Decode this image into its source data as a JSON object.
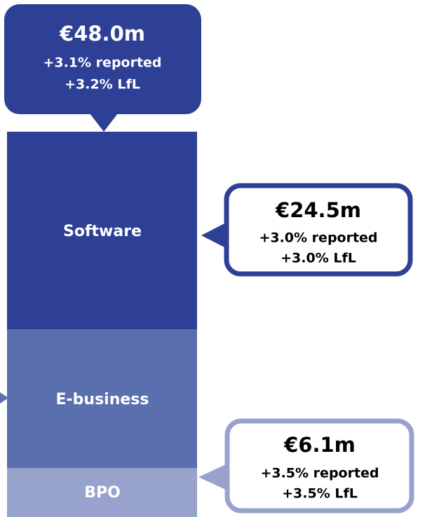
{
  "segments": [
    {
      "label": "Software"
    },
    {
      "label": "E-business"
    },
    {
      "label": "BPO"
    }
  ],
  "callouts": [
    {
      "amount": "€48.0m",
      "reported": "+3.1%  reported",
      "lfl": "+3.2%  LfL"
    },
    {
      "amount": "€24.5m",
      "reported": "+3.0%  reported",
      "lfl": "+3.0%  LfL"
    },
    {
      "amount": "€6.1m",
      "reported": "+3.5%  reported",
      "lfl": "+3.5%  LfL"
    }
  ]
}
